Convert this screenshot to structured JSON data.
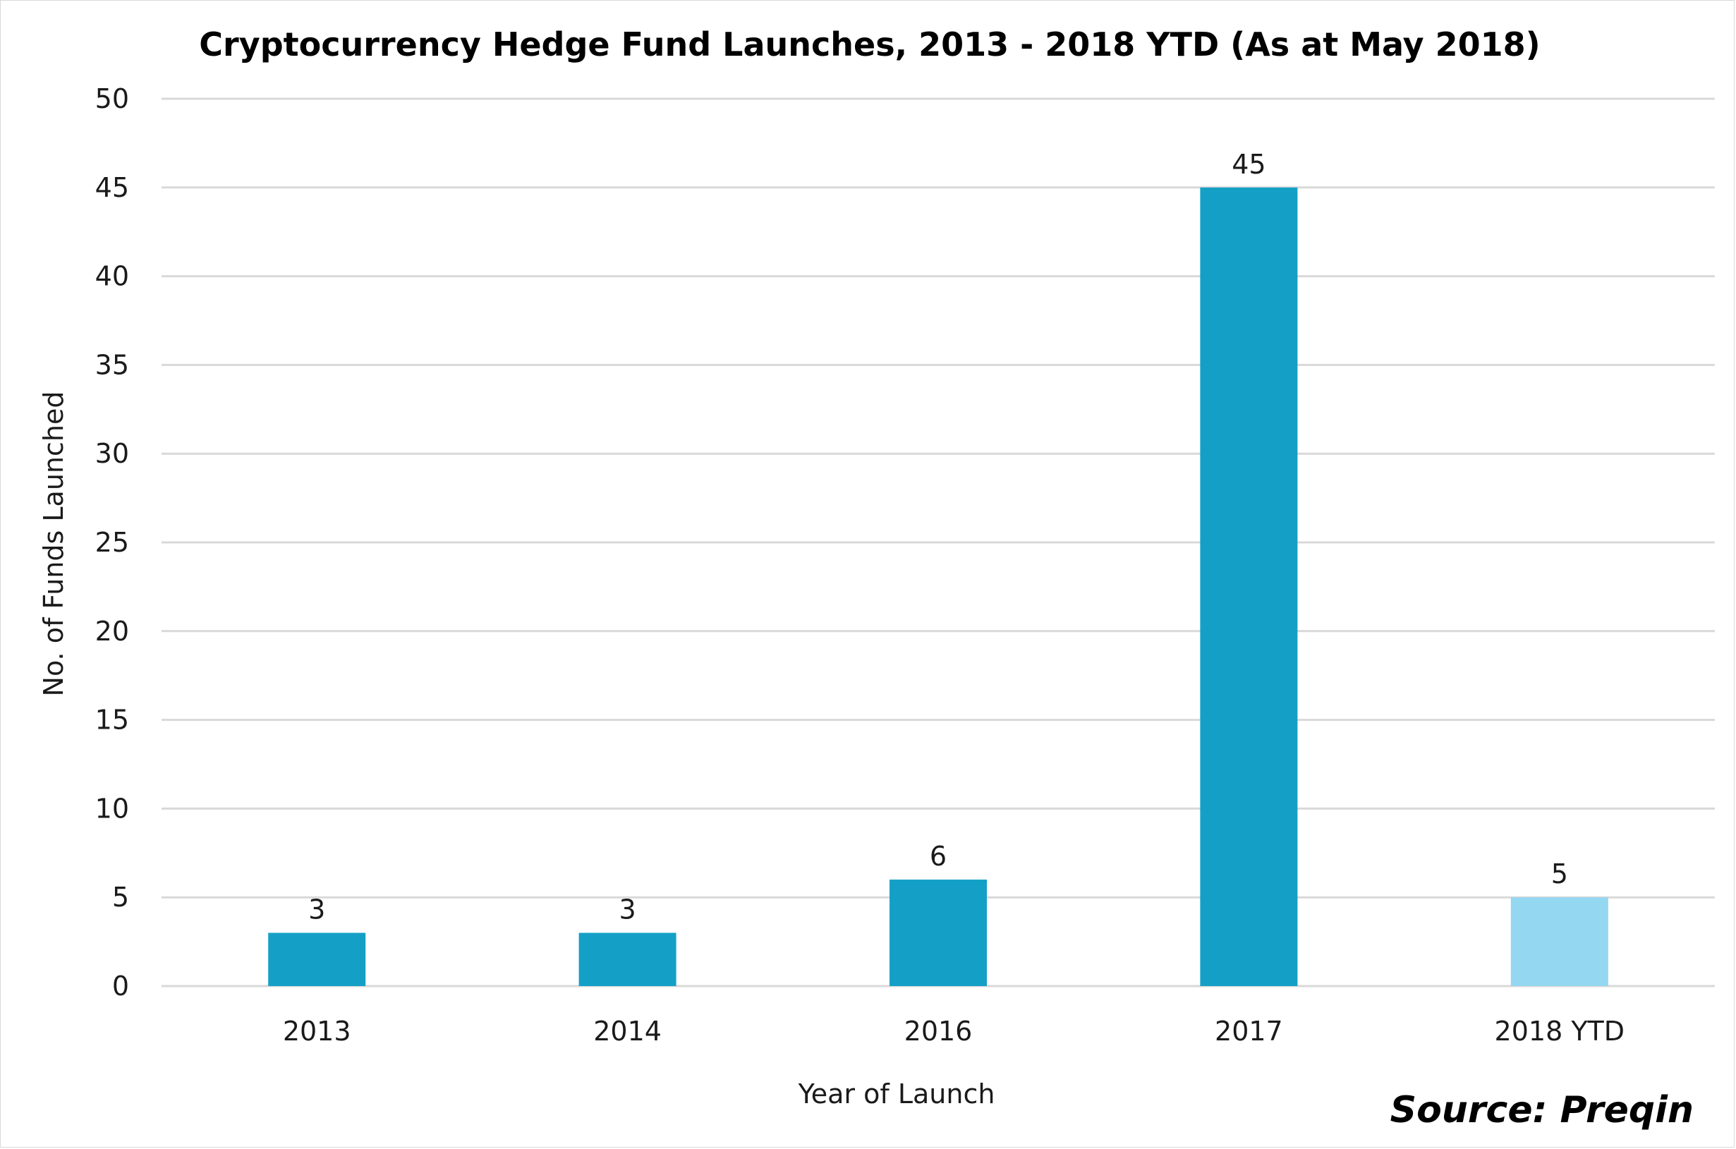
{
  "chart_data": {
    "type": "bar",
    "title": "Cryptocurrency Hedge Fund Launches, 2013 - 2018 YTD (As at May 2018)",
    "xlabel": "Year of Launch",
    "ylabel": "No. of Funds Launched",
    "categories": [
      "2013",
      "2014",
      "2016",
      "2017",
      "2018 YTD"
    ],
    "values": [
      3,
      3,
      6,
      45,
      5
    ],
    "data_labels": [
      "3",
      "3",
      "6",
      "45",
      "5"
    ],
    "bar_colors": [
      "#14a0c6",
      "#14a0c6",
      "#14a0c6",
      "#14a0c6",
      "#93d7f1"
    ],
    "ylim": [
      0,
      50
    ],
    "yticks": [
      0,
      5,
      10,
      15,
      20,
      25,
      30,
      35,
      40,
      45,
      50
    ],
    "ytick_labels": [
      "0",
      "5",
      "10",
      "15",
      "20",
      "25",
      "30",
      "35",
      "40",
      "45",
      "50"
    ],
    "grid": true,
    "grid_color": "#d9d9d9",
    "legend": "none"
  },
  "source": "Source: Preqin"
}
